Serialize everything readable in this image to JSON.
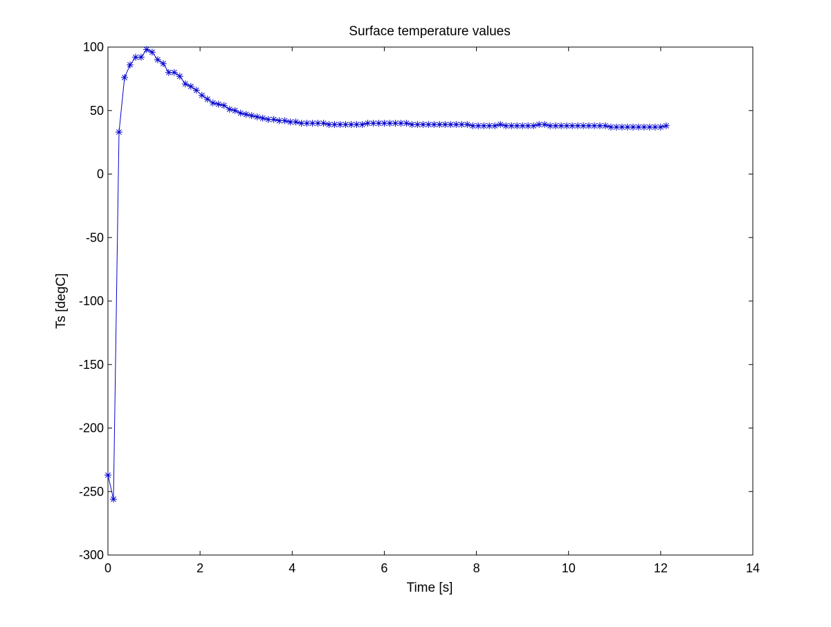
{
  "chart_data": {
    "type": "line",
    "title": "Surface temperature values",
    "xlabel": "Time [s]",
    "ylabel": "Ts [degC]",
    "xlim": [
      0,
      14
    ],
    "ylim": [
      -300,
      100
    ],
    "x_ticks": [
      "0",
      "2",
      "4",
      "6",
      "8",
      "10",
      "12",
      "14"
    ],
    "y_ticks": [
      "100",
      "50",
      "0",
      "-50",
      "-100",
      "-150",
      "-200",
      "-250",
      "-300"
    ],
    "grid": false,
    "marker": "asterisk",
    "series": [
      {
        "color": "#0000cc",
        "x": [
          0.0,
          0.12,
          0.24,
          0.36,
          0.48,
          0.6,
          0.72,
          0.84,
          0.96,
          1.08,
          1.2,
          1.32,
          1.44,
          1.56,
          1.68,
          1.8,
          1.92,
          2.04,
          2.16,
          2.28,
          2.4,
          2.52,
          2.64,
          2.76,
          2.88,
          3.0,
          3.12,
          3.24,
          3.36,
          3.48,
          3.6,
          3.72,
          3.84,
          3.96,
          4.08,
          4.2,
          4.32,
          4.44,
          4.56,
          4.68,
          4.8,
          4.92,
          5.04,
          5.16,
          5.28,
          5.4,
          5.52,
          5.64,
          5.76,
          5.88,
          6.0,
          6.12,
          6.24,
          6.36,
          6.48,
          6.6,
          6.72,
          6.84,
          6.96,
          7.08,
          7.2,
          7.32,
          7.44,
          7.56,
          7.68,
          7.8,
          7.92,
          8.04,
          8.16,
          8.28,
          8.4,
          8.52,
          8.64,
          8.76,
          8.88,
          9.0,
          9.12,
          9.24,
          9.36,
          9.48,
          9.6,
          9.72,
          9.84,
          9.96,
          10.08,
          10.2,
          10.32,
          10.44,
          10.56,
          10.68,
          10.8,
          10.92,
          11.04,
          11.16,
          11.28,
          11.4,
          11.52,
          11.64,
          11.76,
          11.88,
          12.0,
          12.12
        ],
        "y": [
          -237,
          -256,
          33,
          76,
          86,
          92,
          92,
          98,
          96,
          90,
          87,
          80,
          80,
          77,
          71,
          69,
          66,
          62,
          59,
          56,
          55,
          54,
          51,
          50,
          48,
          47,
          46,
          45,
          44,
          43,
          43,
          42,
          42,
          41,
          41,
          40,
          40,
          40,
          40,
          40,
          39,
          39,
          39,
          39,
          39,
          39,
          39,
          40,
          40,
          40,
          40,
          40,
          40,
          40,
          40,
          39,
          39,
          39,
          39,
          39,
          39,
          39,
          39,
          39,
          39,
          39,
          38,
          38,
          38,
          38,
          38,
          39,
          38,
          38,
          38,
          38,
          38,
          38,
          39,
          39,
          38,
          38,
          38,
          38,
          38,
          38,
          38,
          38,
          38,
          38,
          38,
          37,
          37,
          37,
          37,
          37,
          37,
          37,
          37,
          37,
          37,
          38
        ]
      }
    ]
  }
}
